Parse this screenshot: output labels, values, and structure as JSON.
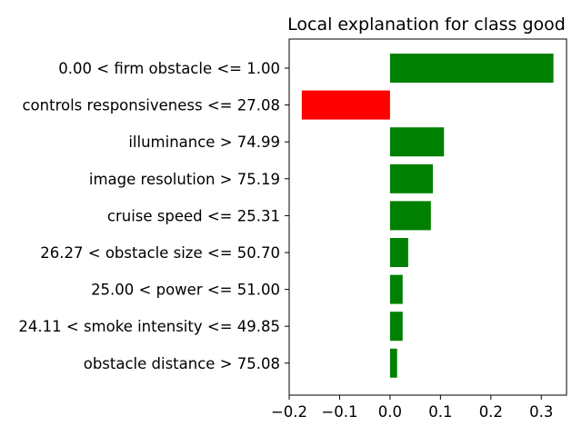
{
  "chart_data": {
    "type": "bar",
    "orientation": "horizontal",
    "title": "Local explanation for class good",
    "xlabel": "",
    "ylabel": "",
    "xlim": [
      -0.2,
      0.35
    ],
    "xticks": [
      -0.2,
      -0.1,
      0.0,
      0.1,
      0.2,
      0.3
    ],
    "xtick_labels": [
      "−0.2",
      "−0.1",
      "0.0",
      "0.1",
      "0.2",
      "0.3"
    ],
    "grid": false,
    "legend": "none",
    "categories": [
      "0.00 < firm obstacle <= 1.00",
      "controls responsiveness <= 27.08",
      "illuminance > 74.99",
      "image resolution > 75.19",
      "cruise speed <= 25.31",
      "26.27 < obstacle size <= 50.70",
      "25.00 < power <= 51.00",
      "24.11 < smoke intensity <= 49.85",
      "obstacle distance > 75.08"
    ],
    "values": [
      0.324,
      -0.175,
      0.107,
      0.085,
      0.081,
      0.036,
      0.025,
      0.025,
      0.014
    ],
    "colors": {
      "positive": "#008000",
      "negative": "#ff0000"
    }
  }
}
